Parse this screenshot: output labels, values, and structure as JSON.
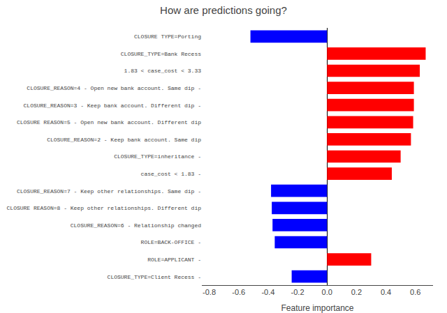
{
  "chart_data": {
    "type": "bar",
    "orientation": "horizontal",
    "title": "How are predictions going?",
    "xlabel": "Feature importance",
    "categories": [
      "CLOSURE TYPE=Porting",
      "CLOSURE_TYPE=Bank Recess",
      "1.83 < case_cost < 3.33",
      "CLOSURE_REASON=4 - Open new bank account. Same dip -",
      "CLOSURE_REASON=3 - Keep bank account. Different dip -",
      "CLOSURE REASON=5 - Open new bank account. Different dip",
      "CLOSURE_REASON=2 - Keep bank account. Same dip",
      "CLOSURE_TYPE=inheritance -",
      "case_cost < 1.83 -",
      "CLOSURE_REASON=7 - Keep other relationships. Same dip -",
      "CLOSURE REASON=8 - Keep other relationships. Different dip",
      "CLOSURE_REASON=6 - Relationship changed",
      "ROLE=BACK-OFFICE -",
      "ROLE=APPLICANT -",
      "CLOSURE_TYPE=Client Recess -"
    ],
    "values": [
      -0.52,
      0.67,
      0.63,
      0.59,
      0.59,
      0.585,
      0.57,
      0.5,
      0.44,
      -0.38,
      -0.375,
      -0.37,
      -0.355,
      0.3,
      -0.24
    ],
    "colors": [
      "blue",
      "red",
      "red",
      "red",
      "red",
      "red",
      "red",
      "red",
      "red",
      "blue",
      "blue",
      "blue",
      "blue",
      "red",
      "blue"
    ],
    "xlim": [
      -0.85,
      0.72
    ],
    "xticks": [
      -0.8,
      -0.6,
      -0.4,
      -0.2,
      {
        "value": 0,
        "label": "0.0"
      },
      0.2,
      0.4,
      0.6
    ],
    "grid": false
  }
}
